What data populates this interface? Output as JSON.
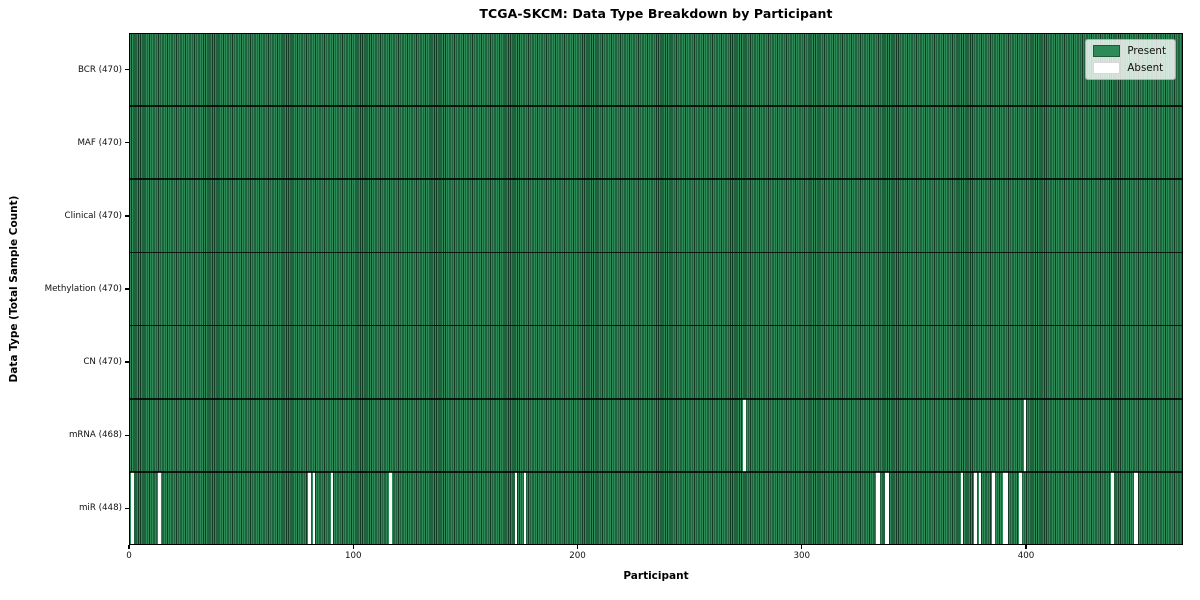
{
  "chart_data": {
    "type": "heatmap",
    "title": "TCGA-SKCM: Data Type Breakdown by Participant",
    "xlabel": "Participant",
    "ylabel": "Data Type (Total Sample Count)",
    "x_ticks": [
      0,
      100,
      200,
      300,
      400
    ],
    "xlim": [
      0,
      470
    ],
    "n_participants": 470,
    "grid": false,
    "legend_position": "upper right",
    "legend": [
      {
        "label": "Present",
        "color": "#2E8B57"
      },
      {
        "label": "Absent",
        "color": "#FFFFFF"
      }
    ],
    "rows": [
      {
        "label": "BCR (470)",
        "data_type": "BCR",
        "total": 470,
        "absent": []
      },
      {
        "label": "MAF (470)",
        "data_type": "MAF",
        "total": 470,
        "absent": []
      },
      {
        "label": "Clinical (470)",
        "data_type": "Clinical",
        "total": 470,
        "absent": []
      },
      {
        "label": "Methylation (470)",
        "data_type": "Methylation",
        "total": 470,
        "absent": []
      },
      {
        "label": "CN (470)",
        "data_type": "CN",
        "total": 470,
        "absent": []
      },
      {
        "label": "mRNA (468)",
        "data_type": "mRNA",
        "total": 468,
        "absent": [
          274,
          399
        ]
      },
      {
        "label": "miR (448)",
        "data_type": "miR",
        "total": 448,
        "absent": [
          1,
          13,
          80,
          82,
          90,
          116,
          172,
          176,
          333,
          334,
          337,
          338,
          371,
          377,
          379,
          385,
          390,
          391,
          397,
          438,
          448,
          449
        ]
      }
    ],
    "colors": {
      "present": "#2E8B57",
      "bar_edge": "#143925",
      "absent": "#FFFFFF",
      "row_divider": "rgba(0,0,0,0.8)",
      "spine": "#000000"
    }
  }
}
